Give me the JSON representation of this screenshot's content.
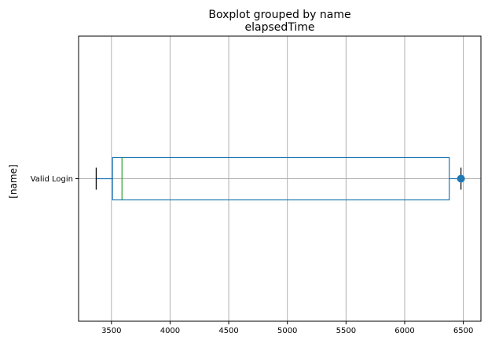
{
  "chart_data": {
    "type": "boxplot",
    "suptitle": "Boxplot grouped by name",
    "title": "elapsedTime",
    "xlabel": "",
    "ylabel": "[name]",
    "orientation": "horizontal",
    "xlim": [
      3220,
      6650
    ],
    "xticks": [
      3500,
      4000,
      4500,
      5000,
      5500,
      6000,
      6500
    ],
    "grid": true,
    "categories": [
      "Valid Login"
    ],
    "boxes": [
      {
        "category": "Valid Login",
        "whisker_low": 3370,
        "q1": 3510,
        "median": 3590,
        "q3": 6380,
        "whisker_high": 6480,
        "fliers": [
          6480
        ]
      }
    ],
    "colors": {
      "box": "#1f77b4",
      "median": "#2ca02c",
      "whisker_cap": "#000000",
      "grid": "#b0b0b0",
      "flier": "#1f77b4"
    }
  }
}
